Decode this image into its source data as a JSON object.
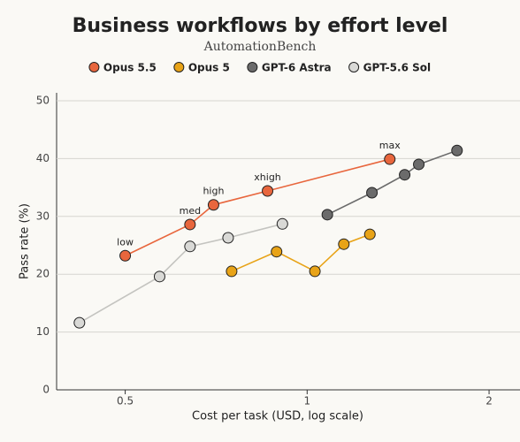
{
  "chart_data": {
    "type": "line",
    "title": "Business workflows by effort level",
    "subtitle": "AutomationBench",
    "x_label": "Cost per task (USD, log scale)",
    "y_label": "Pass rate (%)",
    "xscale": "log",
    "xlim": [
      0.385,
      2.25
    ],
    "xticks": [
      0.5,
      1,
      2
    ],
    "ylim": [
      0,
      50
    ],
    "yticks": [
      0,
      10,
      20,
      30,
      40,
      50
    ],
    "grid": true,
    "legend": "top",
    "series": [
      {
        "name": "Opus 5.5",
        "color": "#e8663d",
        "x": [
          0.5,
          0.64,
          0.7,
          0.86,
          1.37
        ],
        "values": [
          23.2,
          28.6,
          32.0,
          34.4,
          39.9
        ],
        "labels": [
          "low",
          "med",
          "high",
          "xhigh",
          "max"
        ]
      },
      {
        "name": "Opus 5",
        "color": "#e8a317",
        "x": [
          0.75,
          0.89,
          1.03,
          1.15,
          1.27
        ],
        "values": [
          20.5,
          23.9,
          20.5,
          25.2,
          26.9
        ]
      },
      {
        "name": "GPT-6 Astra",
        "color": "#6b6b6b",
        "x": [
          1.08,
          1.28,
          1.45,
          1.53,
          1.77
        ],
        "values": [
          30.3,
          34.1,
          37.2,
          39.0,
          41.4
        ]
      },
      {
        "name": "GPT-5.6 Sol",
        "color": "#d9d9d6",
        "x": [
          0.42,
          0.57,
          0.64,
          0.74,
          0.91
        ],
        "values": [
          11.6,
          19.6,
          24.8,
          26.3,
          28.7
        ]
      }
    ]
  }
}
